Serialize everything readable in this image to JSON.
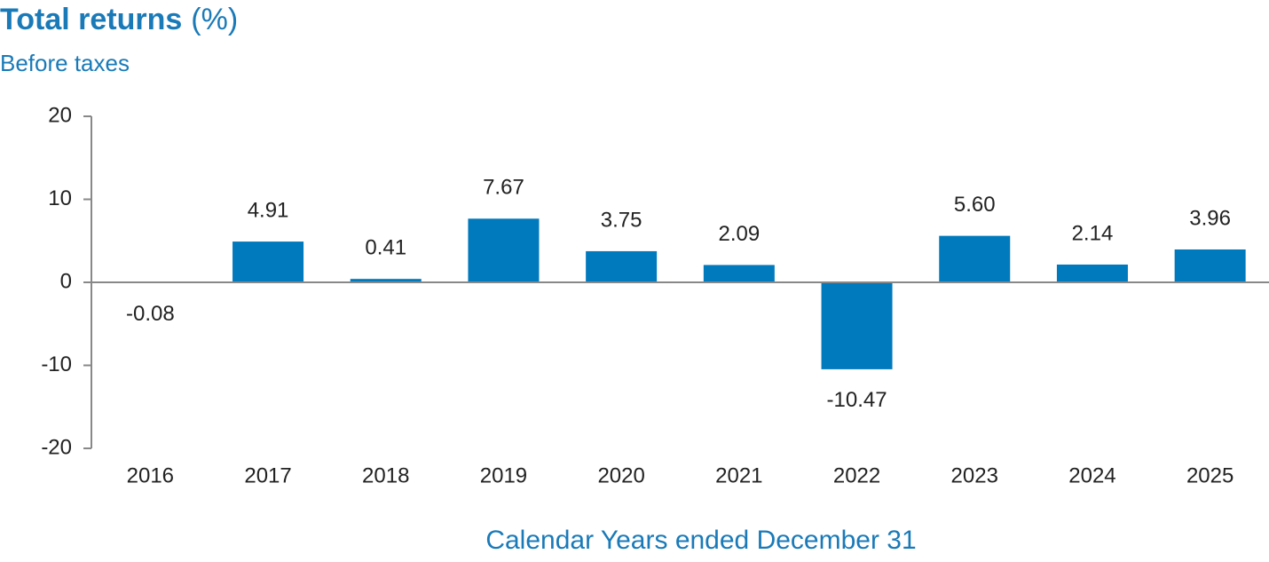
{
  "chart_data": {
    "type": "bar",
    "title": "Total returns",
    "title_unit": "(%)",
    "subtitle": "Before taxes",
    "x_label": "Calendar Years ended December 31",
    "categories": [
      "2016",
      "2017",
      "2018",
      "2019",
      "2020",
      "2021",
      "2022",
      "2023",
      "2024",
      "2025"
    ],
    "values": [
      -0.08,
      4.91,
      0.41,
      7.67,
      3.75,
      2.09,
      -10.47,
      5.6,
      2.14,
      3.96
    ],
    "value_labels": [
      "-0.08",
      "4.91",
      "0.41",
      "7.67",
      "3.75",
      "2.09",
      "-10.47",
      "5.60",
      "2.14",
      "3.96"
    ],
    "color": "#0079bd",
    "ylim": [
      -20,
      20
    ],
    "yticks": [
      20,
      10,
      0,
      -10,
      -20
    ]
  }
}
